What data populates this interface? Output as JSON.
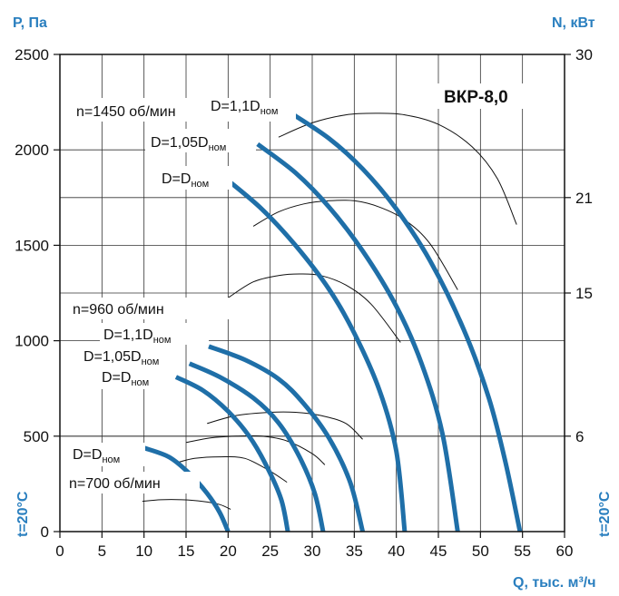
{
  "chart_data": {
    "type": "line",
    "model": "ВКР-8,0",
    "xlabel": "Q, тыс. м³/ч",
    "ylabel_left": "P, Па",
    "ylabel_right": "N, кВт",
    "temp_left": "t=20°C",
    "temp_right": "t=20°C",
    "xlim": [
      0,
      60
    ],
    "ylim": [
      0,
      2500
    ],
    "y2lim": [
      0,
      30
    ],
    "x_ticks": [
      0,
      5,
      10,
      15,
      20,
      25,
      30,
      35,
      40,
      45,
      50,
      55,
      60
    ],
    "y_ticks": [
      0,
      500,
      1000,
      1500,
      2000,
      2500
    ],
    "y2_ticks": [
      6,
      15,
      21,
      30
    ],
    "grid": true,
    "speed_labels": {
      "n1450": "n=1450 об/мин",
      "n960": "n=960 об/мин",
      "n700": "n=700 об/мин"
    },
    "pressure_series": [
      {
        "name": "n1450 D=1,1Dном",
        "x": [
          27.2,
          32,
          36,
          40,
          44,
          48,
          51,
          53,
          54.7
        ],
        "y": [
          2200,
          2060,
          1900,
          1690,
          1420,
          1060,
          700,
          360,
          0
        ]
      },
      {
        "name": "n1450 D=1,05Dном",
        "x": [
          23.5,
          28,
          32,
          36,
          40,
          43,
          45.5,
          47.3
        ],
        "y": [
          2030,
          1880,
          1700,
          1470,
          1180,
          880,
          510,
          0
        ]
      },
      {
        "name": "n1450 D=Dном",
        "x": [
          20,
          24,
          28,
          32,
          35,
          38,
          40,
          41
        ],
        "y": [
          1840,
          1690,
          1500,
          1270,
          1040,
          740,
          420,
          0
        ]
      },
      {
        "name": "n960 D=1,1Dном",
        "x": [
          17.7,
          22,
          26,
          29,
          32,
          34.5,
          36
        ],
        "y": [
          970,
          900,
          800,
          670,
          490,
          260,
          0
        ]
      },
      {
        "name": "n960 D=1,05Dном",
        "x": [
          15.4,
          19,
          23,
          26,
          28.5,
          30.3,
          31.3
        ],
        "y": [
          880,
          810,
          700,
          570,
          390,
          200,
          0
        ]
      },
      {
        "name": "n960 D=Dном",
        "x": [
          13.8,
          17,
          20,
          22.5,
          24.5,
          26.3,
          27.1
        ],
        "y": [
          810,
          740,
          630,
          500,
          350,
          170,
          0
        ]
      },
      {
        "name": "n700 D=Dном",
        "x": [
          9.9,
          13,
          15.5,
          17.5,
          19,
          20
        ],
        "y": [
          440,
          390,
          300,
          200,
          100,
          0
        ]
      }
    ],
    "power_series": [
      {
        "name": "n1450 power 1",
        "x": [
          26,
          30,
          34,
          37.5,
          41,
          45,
          49,
          52,
          54.3
        ],
        "y": [
          24.8,
          25.7,
          26.2,
          26.3,
          26.2,
          25.6,
          24.2,
          22.2,
          19.3
        ]
      },
      {
        "name": "n1450 power 2",
        "x": [
          23,
          26,
          29,
          32,
          35,
          38,
          41,
          44,
          47.3
        ],
        "y": [
          19.2,
          20.1,
          20.6,
          20.8,
          20.8,
          20.4,
          19.6,
          18.1,
          15.2
        ]
      },
      {
        "name": "n1450 power 3",
        "x": [
          20,
          23,
          26,
          28.5,
          31,
          34,
          37,
          40.5
        ],
        "y": [
          14.7,
          15.7,
          16.1,
          16.2,
          16.1,
          15.5,
          14.3,
          11.9
        ]
      },
      {
        "name": "n960 power 1",
        "x": [
          17.5,
          21,
          25,
          28,
          31,
          34,
          36
        ],
        "y": [
          6.8,
          7.3,
          7.5,
          7.5,
          7.3,
          6.8,
          5.8
        ]
      },
      {
        "name": "n960 power 2",
        "x": [
          15,
          18,
          21,
          24,
          27,
          30,
          31.5
        ],
        "y": [
          5.6,
          5.9,
          6.0,
          6.0,
          5.7,
          4.9,
          4.2
        ]
      },
      {
        "name": "n960 power 3",
        "x": [
          13.7,
          16,
          19,
          22,
          25,
          27
        ],
        "y": [
          4.3,
          4.6,
          4.7,
          4.6,
          3.8,
          3.1
        ]
      },
      {
        "name": "n700 power 1",
        "x": [
          9.8,
          12,
          14.5,
          17,
          19,
          20.3
        ],
        "y": [
          1.9,
          2.0,
          2.0,
          1.9,
          1.7,
          1.4
        ]
      }
    ]
  },
  "annotations": {
    "n1450_d11_main": "D=1,1D",
    "n1450_d105_main": "D=1,05D",
    "n1450_d1_main": "D=D",
    "n960_d11_main": "D=1,1D",
    "n960_d105_main": "D=1,05D",
    "n960_d1_main": "D=D",
    "n700_d1_main": "D=D",
    "nom_sub": "ном"
  }
}
